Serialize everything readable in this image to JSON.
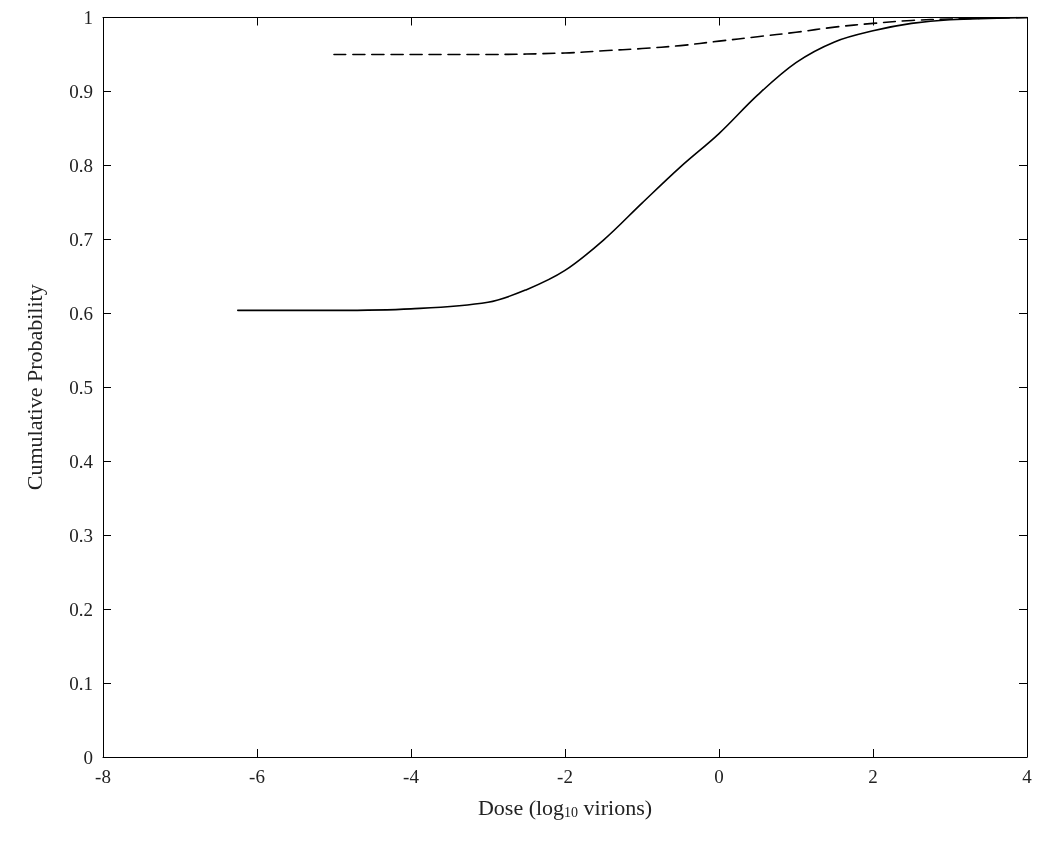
{
  "chart_data": {
    "type": "line",
    "xlabel": "Dose (log$_{10}$ virions)",
    "ylabel": "Cumulative Probability",
    "xlim": [
      -8,
      4
    ],
    "xticks": [
      -8,
      -6,
      -4,
      -2,
      0,
      2,
      4
    ],
    "ylim": [
      0,
      1
    ],
    "yticks": [
      0,
      0.1,
      0.2,
      0.3,
      0.4,
      0.5,
      0.6,
      0.7,
      0.8,
      0.9,
      1
    ],
    "grid": false,
    "marker": "none",
    "series": [
      {
        "color": "#000000",
        "line_style": "solid",
        "x": [
          -6.25,
          -5,
          -4,
          -3,
          -2.5,
          -2,
          -1.5,
          -1,
          -0.5,
          0,
          0.5,
          1,
          1.5,
          2,
          2.5,
          3,
          4
        ],
        "values": [
          0.604,
          0.604,
          0.606,
          0.615,
          0.632,
          0.658,
          0.699,
          0.749,
          0.798,
          0.843,
          0.895,
          0.939,
          0.967,
          0.982,
          0.992,
          0.997,
          1
        ]
      },
      {
        "color": "#000000",
        "line_style": "dashed",
        "x": [
          -5,
          -4,
          -3,
          -2,
          -1.5,
          -1,
          -0.5,
          0,
          0.5,
          1,
          1.5,
          2,
          2.5,
          3,
          4
        ],
        "values": [
          0.95,
          0.95,
          0.95,
          0.952,
          0.955,
          0.958,
          0.962,
          0.968,
          0.974,
          0.98,
          0.987,
          0.992,
          0.996,
          0.998,
          1
        ]
      }
    ]
  }
}
